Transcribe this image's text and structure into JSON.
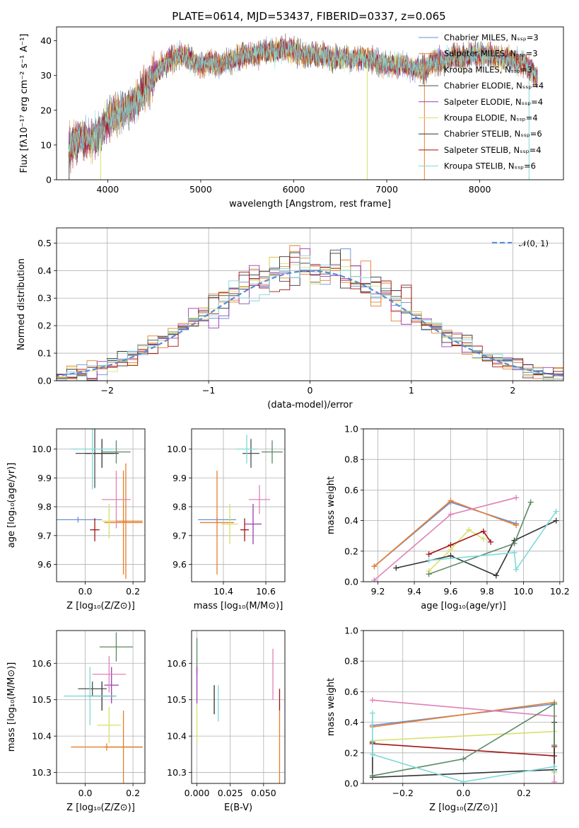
{
  "title": "PLATE=0614, MJD=53437, FIBERID=0337, z=0.065",
  "colors": [
    "#6a8fd6",
    "#e77e2e",
    "#e07f2c",
    "#4d4d4d",
    "#9b3bb3",
    "#d8e06b",
    "#333333",
    "#a01515",
    "#7fd8d8"
  ],
  "extra_colors": {
    "pink": "#e080b8",
    "green": "#5a8a66",
    "dashed": "#5a8ad6"
  },
  "chart_data": [
    {
      "type": "line",
      "xlabel": "wavelength [Angstrom, rest frame]",
      "ylabel": "Flux [fλ10⁻¹⁷ erg cm⁻² s⁻¹ A⁻¹]",
      "xlim": [
        3450,
        8900
      ],
      "ylim": [
        0,
        44
      ],
      "xticks": [
        4000,
        5000,
        6000,
        7000,
        8000
      ],
      "yticks": [
        0,
        10,
        20,
        30,
        40
      ],
      "grid": false,
      "legend_position": "top-right",
      "legend": [
        "Chabrier MILES, Nₛₛₚ=3",
        "Salpeter MILES, Nₛₛₚ=3",
        "Kroupa MILES, Nₛₛₚ=3",
        "Chabrier ELODIE, Nₛₛₚ=4",
        "Salpeter ELODIE, Nₛₛₚ=4",
        "Kroupa ELODIE, Nₛₛₚ=4",
        "Chabrier STELIB, Nₛₛₚ=6",
        "Salpeter STELIB, Nₛₛₚ=4",
        "Kroupa STELIB, Nₛₛₚ=6"
      ],
      "continuum": {
        "x": [
          3580,
          3700,
          3800,
          3900,
          4000,
          4100,
          4200,
          4300,
          4400,
          4500,
          4600,
          4700,
          4800,
          4900,
          5000,
          5100,
          5200,
          5300,
          5400,
          5500,
          5600,
          5700,
          5800,
          5900,
          6000,
          6100,
          6200,
          6300,
          6400,
          6500,
          6600,
          6700,
          6800,
          6900,
          7000,
          7100,
          7200,
          7300,
          7400,
          7500,
          7600,
          7700,
          7800,
          7900,
          8000,
          8100,
          8200,
          8300,
          8400,
          8500,
          8600
        ],
        "y": [
          9,
          13,
          11,
          13,
          17,
          19,
          20,
          22,
          26,
          30,
          33,
          35,
          36,
          34,
          33,
          34,
          33,
          34,
          35,
          36,
          36,
          37,
          37,
          38,
          37,
          36,
          36,
          36,
          35,
          35,
          35,
          35,
          35,
          34,
          33,
          33,
          33,
          32,
          32,
          34,
          34,
          35,
          35,
          36,
          36,
          36,
          35,
          35,
          34,
          33,
          30
        ]
      }
    },
    {
      "type": "bar",
      "subtype": "step-histogram",
      "xlabel": "(data-model)/error",
      "ylabel": "Normed distribution",
      "xlim": [
        -2.5,
        2.5
      ],
      "ylim": [
        0,
        0.555
      ],
      "xticks": [
        -2,
        -1,
        0,
        1,
        2
      ],
      "yticks": [
        0.0,
        0.1,
        0.2,
        0.3,
        0.4,
        0.5
      ],
      "grid": true,
      "legend_position": "top-right",
      "reference_curve": {
        "label": "𝒩(0, 1)",
        "mean": 0,
        "sigma": 1
      }
    },
    {
      "type": "scatter",
      "subtype": "errorbar",
      "xlabel": "Z [log₁₀(Z/Z⊙)]",
      "ylabel": "age  [log₁₀(age/yr)]",
      "xlim": [
        -0.12,
        0.25
      ],
      "ylim": [
        9.54,
        10.07
      ],
      "xticks": [
        0.0,
        0.2
      ],
      "yticks": [
        9.6,
        9.7,
        9.8,
        9.9,
        10.0
      ],
      "grid": true,
      "points": [
        {
          "x": -0.03,
          "y": 9.755,
          "xerr": 0.1,
          "yerr": 0.01,
          "c": 0
        },
        {
          "x": 0.16,
          "y": 9.745,
          "xerr": 0.08,
          "yerr": 0.18,
          "c": 1
        },
        {
          "x": 0.17,
          "y": 9.75,
          "xerr": 0.07,
          "yerr": 0.2,
          "c": 2
        },
        {
          "x": 0.04,
          "y": 9.985,
          "xerr": 0.08,
          "yerr": 0.12,
          "c": 3
        },
        {
          "x": 0.04,
          "y": 9.72,
          "xerr": 0.02,
          "yerr": 0.04,
          "c": 7
        },
        {
          "x": 0.1,
          "y": 9.75,
          "xerr": 0.03,
          "yerr": 0.06,
          "c": 5
        },
        {
          "x": 0.07,
          "y": 9.985,
          "xerr": 0.07,
          "yerr": 0.05,
          "c": 6
        },
        {
          "x": 0.03,
          "y": 10.0,
          "xerr": 0.09,
          "yerr": 0.14,
          "c": 8
        },
        {
          "x": 0.13,
          "y": 9.825,
          "xerr": 0.06,
          "yerr": 0.1,
          "c": "pink"
        },
        {
          "x": 0.13,
          "y": 9.99,
          "xerr": 0.06,
          "yerr": 0.04,
          "c": "green"
        }
      ]
    },
    {
      "type": "scatter",
      "subtype": "errorbar",
      "xlabel": "mass [log₁₀(M/M⊙)]",
      "ylabel": "",
      "xlim": [
        10.25,
        10.69
      ],
      "ylim": [
        9.54,
        10.07
      ],
      "xticks": [
        10.4,
        10.6
      ],
      "yticks": [
        9.6,
        9.7,
        9.8,
        9.9,
        10.0
      ],
      "grid": true,
      "points": [
        {
          "x": 10.37,
          "y": 9.755,
          "xerr": 0.09,
          "yerr": 0.01,
          "c": 0
        },
        {
          "x": 10.37,
          "y": 9.745,
          "xerr": 0.08,
          "yerr": 0.18,
          "c": 1
        },
        {
          "x": 10.43,
          "y": 9.74,
          "xerr": 0.04,
          "yerr": 0.07,
          "c": 5
        },
        {
          "x": 10.5,
          "y": 9.72,
          "xerr": 0.02,
          "yerr": 0.04,
          "c": 7
        },
        {
          "x": 10.53,
          "y": 9.985,
          "xerr": 0.04,
          "yerr": 0.05,
          "c": 3
        },
        {
          "x": 10.54,
          "y": 9.74,
          "xerr": 0.04,
          "yerr": 0.07,
          "c": 4
        },
        {
          "x": 10.51,
          "y": 10.0,
          "xerr": 0.05,
          "yerr": 0.05,
          "c": 8
        },
        {
          "x": 10.57,
          "y": 9.825,
          "xerr": 0.05,
          "yerr": 0.05,
          "c": "pink"
        },
        {
          "x": 10.63,
          "y": 9.99,
          "xerr": 0.05,
          "yerr": 0.04,
          "c": "green"
        }
      ]
    },
    {
      "type": "line",
      "xlabel": "age  [log₁₀(age/yr)]",
      "ylabel": "mass weight",
      "xlim": [
        9.12,
        10.22
      ],
      "ylim": [
        0,
        1
      ],
      "xticks": [
        9.2,
        9.4,
        9.6,
        9.8,
        10.0,
        10.2
      ],
      "yticks": [
        0.0,
        0.2,
        0.4,
        0.6,
        0.8,
        1.0
      ],
      "grid": true,
      "series": [
        {
          "c": 0,
          "x": [
            9.18,
            9.6,
            9.96
          ],
          "y": [
            0.1,
            0.52,
            0.38
          ]
        },
        {
          "c": 1,
          "x": [
            9.18,
            9.6,
            9.96
          ],
          "y": [
            0.1,
            0.53,
            0.37
          ]
        },
        {
          "c": "pink",
          "x": [
            9.18,
            9.6,
            9.96
          ],
          "y": [
            0.01,
            0.44,
            0.55
          ]
        },
        {
          "c": 5,
          "x": [
            9.48,
            9.6,
            9.7,
            9.78
          ],
          "y": [
            0.07,
            0.21,
            0.34,
            0.28
          ]
        },
        {
          "c": 7,
          "x": [
            9.48,
            9.6,
            9.78,
            9.82
          ],
          "y": [
            0.18,
            0.24,
            0.33,
            0.26
          ]
        },
        {
          "c": 6,
          "x": [
            9.3,
            9.6,
            9.85,
            9.95,
            10.18
          ],
          "y": [
            0.09,
            0.17,
            0.04,
            0.27,
            0.4
          ]
        },
        {
          "c": "green",
          "x": [
            9.48,
            9.95,
            10.04
          ],
          "y": [
            0.05,
            0.25,
            0.52
          ]
        },
        {
          "c": 8,
          "x": [
            9.48,
            9.95,
            9.96,
            10.18
          ],
          "y": [
            0.14,
            0.19,
            0.08,
            0.46
          ]
        }
      ]
    },
    {
      "type": "scatter",
      "subtype": "errorbar",
      "xlabel": "Z [log₁₀(Z/Z⊙)]",
      "ylabel": "mass [log₁₀(M/M⊙)]",
      "xlim": [
        -0.12,
        0.25
      ],
      "ylim": [
        10.27,
        10.69
      ],
      "xticks": [
        0.0,
        0.2
      ],
      "yticks": [
        10.3,
        10.4,
        10.5,
        10.6
      ],
      "grid": true,
      "points": [
        {
          "x": 0.09,
          "y": 10.37,
          "xerr": 0.15,
          "yerr": 0.01,
          "c": 1
        },
        {
          "x": 0.03,
          "y": 10.53,
          "xerr": 0.06,
          "yerr": 0.02,
          "c": 3
        },
        {
          "x": 0.07,
          "y": 10.51,
          "xerr": 0.06,
          "yerr": 0.04,
          "c": 6
        },
        {
          "x": 0.13,
          "y": 10.645,
          "xerr": 0.07,
          "yerr": 0.04,
          "c": "green"
        },
        {
          "x": 0.11,
          "y": 10.54,
          "xerr": 0.03,
          "yerr": 0.05,
          "c": 4
        },
        {
          "x": 0.1,
          "y": 10.57,
          "xerr": 0.07,
          "yerr": 0.05,
          "c": "pink"
        },
        {
          "x": 0.1,
          "y": 10.43,
          "xerr": 0.05,
          "yerr": 0.05,
          "c": 5
        },
        {
          "x": 0.02,
          "y": 10.51,
          "xerr": 0.11,
          "yerr": 0.08,
          "c": 8
        },
        {
          "x": 0.16,
          "y": 10.37,
          "xerr": 0.08,
          "yerr": 0.1,
          "c": 2
        }
      ]
    },
    {
      "type": "scatter",
      "subtype": "errorbar",
      "xlabel": "E(B-V)",
      "ylabel": "",
      "xlim": [
        -0.004,
        0.066
      ],
      "ylim": [
        10.27,
        10.69
      ],
      "xticks": [
        0.0,
        0.025,
        0.05
      ],
      "yticks": [
        10.3,
        10.4,
        10.5,
        10.6
      ],
      "grid": true,
      "points": [
        {
          "x": 0.0,
          "y": 10.62,
          "xerr": 0,
          "yerr": 0.05,
          "c": "green"
        },
        {
          "x": 0.0,
          "y": 10.54,
          "xerr": 0,
          "yerr": 0.05,
          "c": 4
        },
        {
          "x": 0.0,
          "y": 10.43,
          "xerr": 0,
          "yerr": 0.05,
          "c": 5
        },
        {
          "x": 0.013,
          "y": 10.5,
          "xerr": 0,
          "yerr": 0.04,
          "c": 6
        },
        {
          "x": 0.016,
          "y": 10.49,
          "xerr": 0,
          "yerr": 0.05,
          "c": 8
        },
        {
          "x": 0.057,
          "y": 10.57,
          "xerr": 0,
          "yerr": 0.07,
          "c": "pink"
        },
        {
          "x": 0.062,
          "y": 10.5,
          "xerr": 0,
          "yerr": 0.03,
          "c": 7
        },
        {
          "x": 0.062,
          "y": 10.37,
          "xerr": 0,
          "yerr": 0.1,
          "c": 1
        }
      ]
    },
    {
      "type": "line",
      "xlabel": "Z [log₁₀(Z/Z⊙)]",
      "ylabel": "mass weight",
      "xlim": [
        -0.33,
        0.33
      ],
      "ylim": [
        0,
        1
      ],
      "xticks": [
        -0.2,
        0.0,
        0.2
      ],
      "yticks": [
        0.0,
        0.2,
        0.4,
        0.6,
        0.8,
        1.0
      ],
      "grid": true,
      "series": [
        {
          "c": 0,
          "x": [
            -0.3,
            0.3
          ],
          "y": [
            0.38,
            0.52
          ]
        },
        {
          "c": 1,
          "x": [
            -0.3,
            0.3
          ],
          "y": [
            0.37,
            0.53
          ]
        },
        {
          "c": "pink",
          "x": [
            -0.3,
            0.3,
            0.3
          ],
          "y": [
            0.545,
            0.44,
            0.01
          ]
        },
        {
          "c": 5,
          "x": [
            -0.3,
            0.3,
            0.3
          ],
          "y": [
            0.28,
            0.34,
            0.07
          ]
        },
        {
          "c": 7,
          "x": [
            -0.3,
            0.3,
            0.3
          ],
          "y": [
            0.26,
            0.18,
            0.24
          ]
        },
        {
          "c": 6,
          "x": [
            -0.3,
            -0.3,
            0.3,
            0.3
          ],
          "y": [
            0.27,
            0.04,
            0.09,
            0.4
          ]
        },
        {
          "c": "green",
          "x": [
            -0.3,
            0.0,
            0.3,
            0.3
          ],
          "y": [
            0.05,
            0.16,
            0.52,
            0.25
          ]
        },
        {
          "c": 8,
          "x": [
            -0.3,
            -0.3,
            0.0,
            0.3,
            0.3
          ],
          "y": [
            0.46,
            0.19,
            0.01,
            0.11,
            0.08
          ]
        }
      ]
    }
  ]
}
